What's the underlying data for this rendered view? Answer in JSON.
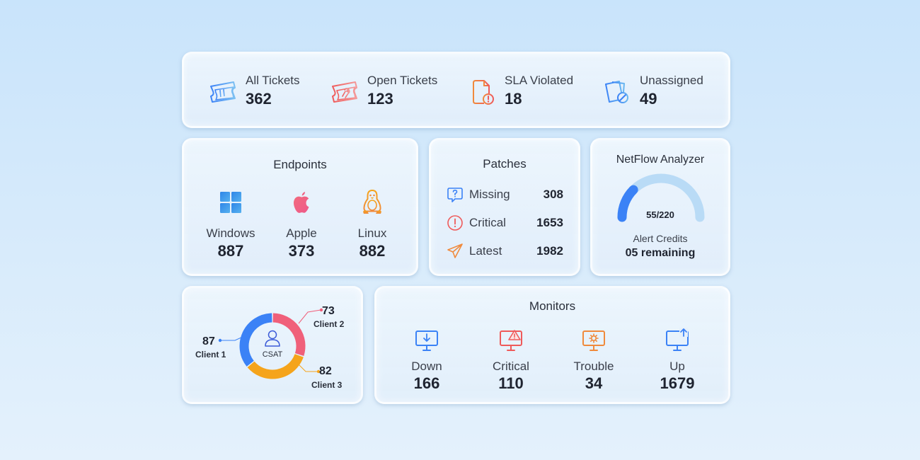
{
  "tickets": [
    {
      "label": "All Tickets",
      "value": "362",
      "icon": "ticket-icon"
    },
    {
      "label": "Open Tickets",
      "value": "123",
      "icon": "ticket-wrench-icon"
    },
    {
      "label": "SLA Violated",
      "value": "18",
      "icon": "document-alert-icon"
    },
    {
      "label": "Unassigned",
      "value": "49",
      "icon": "unassigned-tickets-icon"
    }
  ],
  "endpoints": {
    "title": "Endpoints",
    "items": [
      {
        "label": "Windows",
        "value": "887",
        "icon": "windows-icon"
      },
      {
        "label": "Apple",
        "value": "373",
        "icon": "apple-icon"
      },
      {
        "label": "Linux",
        "value": "882",
        "icon": "linux-icon"
      }
    ]
  },
  "patches": {
    "title": "Patches",
    "items": [
      {
        "label": "Missing",
        "value": "308",
        "icon": "question-bubble-icon"
      },
      {
        "label": "Critical",
        "value": "1653",
        "icon": "exclamation-circle-icon"
      },
      {
        "label": "Latest",
        "value": "1982",
        "icon": "paper-plane-icon"
      }
    ]
  },
  "netflow": {
    "title": "NetFlow Analyzer",
    "gauge_value": 55,
    "gauge_max": 220,
    "gauge_text": "55/220",
    "credits_label": "Alert Credits",
    "credits_value": "05 remaining"
  },
  "csat": {
    "center_label": "CSAT",
    "icon": "user-icon",
    "clients": [
      {
        "name": "Client 1",
        "value": "87",
        "color": "#3b82f6"
      },
      {
        "name": "Client 2",
        "value": "73",
        "color": "#f0607a"
      },
      {
        "name": "Client 3",
        "value": "82",
        "color": "#f5a41b"
      }
    ]
  },
  "monitors": {
    "title": "Monitors",
    "items": [
      {
        "label": "Down",
        "value": "166",
        "icon": "monitor-down-icon"
      },
      {
        "label": "Critical",
        "value": "110",
        "icon": "monitor-warning-icon"
      },
      {
        "label": "Trouble",
        "value": "34",
        "icon": "monitor-gear-icon"
      },
      {
        "label": "Up",
        "value": "1679",
        "icon": "monitor-up-icon"
      }
    ]
  },
  "colors": {
    "blue": "#3b82f6",
    "red": "#ef5a5a",
    "orange": "#f08a3c",
    "pink": "#f0607a",
    "gauge_track": "#b9dbf6"
  }
}
